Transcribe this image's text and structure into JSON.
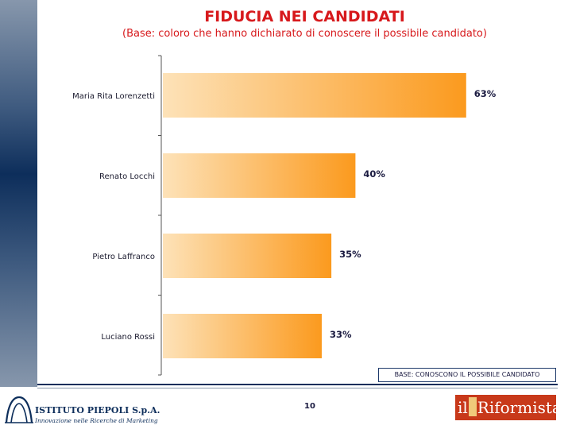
{
  "chart_data": {
    "type": "bar",
    "orientation": "horizontal",
    "title": "FIDUCIA NEI CANDIDATI",
    "subtitle": "(Base: coloro che hanno dichiarato di conoscere il possibile candidato)",
    "categories": [
      "Maria Rita Lorenzetti",
      "Renato Locchi",
      "Pietro Laffranco",
      "Luciano Rossi"
    ],
    "values": [
      63,
      40,
      35,
      33
    ],
    "value_labels": [
      "63%",
      "40%",
      "35%",
      "33%"
    ],
    "value_unit": "%",
    "xlim": [
      0,
      100
    ],
    "grid": false,
    "legend": "none",
    "colors": {
      "bar_start": "#fde2b8",
      "bar_end": "#fb9a1e"
    }
  },
  "base_note": "BASE: CONOSCONO IL POSSIBILE CANDIDATO",
  "page_number": "10",
  "footer": {
    "left_logo": {
      "name": "ISTITUTO PIEPOLI  S.p.A.",
      "tagline": "Innovazione nelle Ricerche di Marketing"
    },
    "right_logo": {
      "prefix": "il",
      "suffix": "Riformista"
    }
  },
  "theme": {
    "title_color": "#d7191c",
    "band_color": "#0d2e5b",
    "logo_red": "#c8391a"
  }
}
